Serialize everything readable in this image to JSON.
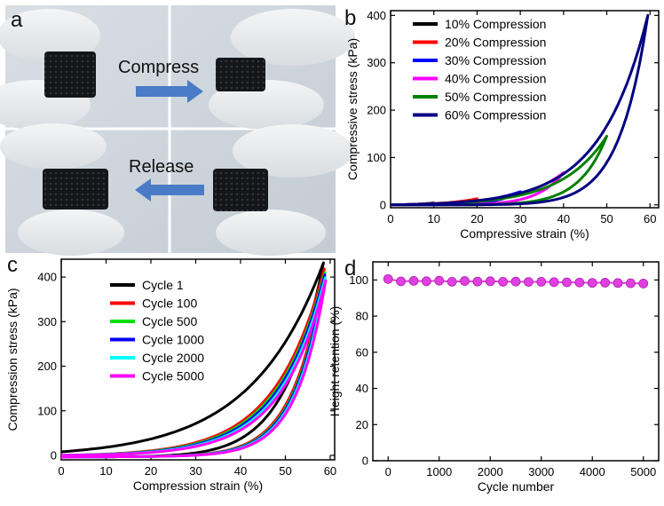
{
  "panel_a": {
    "label": "a",
    "compress_label": "Compress",
    "release_label": "Release",
    "colors": {
      "background": "#cfd6dc",
      "glove": "#eef0f2",
      "sample": "#15161a",
      "arrow": "#4a7bc7"
    }
  },
  "chart_data": [
    {
      "panel": "b",
      "type": "line",
      "xlabel": "Compressive strain (%)",
      "ylabel": "Compressive stress (kPa)",
      "xlim": [
        0,
        62
      ],
      "ylim": [
        -6,
        410
      ],
      "xticks": [
        0,
        10,
        20,
        30,
        40,
        50,
        60
      ],
      "yticks": [
        0,
        100,
        200,
        300,
        400
      ],
      "grid": false,
      "legend_position": "top-left",
      "series": [
        {
          "name": "10% Compression",
          "color": "#000000",
          "max_strain": 10,
          "max_stress": 4
        },
        {
          "name": "20% Compression",
          "color": "#ff0000",
          "max_strain": 20,
          "max_stress": 13
        },
        {
          "name": "30% Compression",
          "color": "#0000ff",
          "max_strain": 30,
          "max_stress": 28
        },
        {
          "name": "40% Compression",
          "color": "#ff00ff",
          "max_strain": 40,
          "max_stress": 68
        },
        {
          "name": "50% Compression",
          "color": "#008000",
          "max_strain": 50,
          "max_stress": 145
        },
        {
          "name": "60% Compression",
          "color": "#000080",
          "max_strain": 59.5,
          "max_stress": 400
        }
      ]
    },
    {
      "panel": "c",
      "type": "line",
      "xlabel": "Compression strain (%)",
      "ylabel": "Compression stress (kPa)",
      "xlim": [
        0,
        61
      ],
      "ylim": [
        -10,
        440
      ],
      "xticks": [
        0,
        10,
        20,
        30,
        40,
        50,
        60
      ],
      "yticks": [
        0,
        100,
        200,
        300,
        400
      ],
      "grid": false,
      "legend_position": "top-left",
      "series": [
        {
          "name": "Cycle 1",
          "color": "#000000",
          "max_strain": 58.5,
          "max_stress": 432
        },
        {
          "name": "Cycle 100",
          "color": "#ff0000",
          "max_strain": 58.7,
          "max_stress": 418
        },
        {
          "name": "Cycle 500",
          "color": "#00e000",
          "max_strain": 58.8,
          "max_stress": 410
        },
        {
          "name": "Cycle 1000",
          "color": "#0000ff",
          "max_strain": 58.8,
          "max_stress": 405
        },
        {
          "name": "Cycle 2000",
          "color": "#00ffff",
          "max_strain": 58.9,
          "max_stress": 398
        },
        {
          "name": "Cycle 5000",
          "color": "#ff00ff",
          "max_strain": 59.0,
          "max_stress": 392
        }
      ]
    },
    {
      "panel": "d",
      "type": "scatter",
      "xlabel": "Cycle number",
      "ylabel": "Height retention (%)",
      "xlim": [
        -300,
        5300
      ],
      "ylim": [
        0,
        110
      ],
      "xticks": [
        0,
        1000,
        2000,
        3000,
        4000,
        5000
      ],
      "yticks": [
        0,
        20,
        40,
        60,
        80,
        100
      ],
      "grid": false,
      "marker_color": "#e040e0",
      "x": [
        0,
        250,
        500,
        750,
        1000,
        1250,
        1500,
        1750,
        2000,
        2250,
        2500,
        2750,
        3000,
        3250,
        3500,
        3750,
        4000,
        4250,
        4500,
        4750,
        5000
      ],
      "y": [
        100.5,
        99.2,
        99.5,
        99.3,
        99.6,
        99.0,
        99.4,
        99.1,
        99.3,
        99.0,
        99.1,
        98.9,
        99.0,
        98.8,
        98.7,
        98.6,
        98.4,
        98.5,
        98.3,
        98.2,
        98.0
      ]
    }
  ]
}
